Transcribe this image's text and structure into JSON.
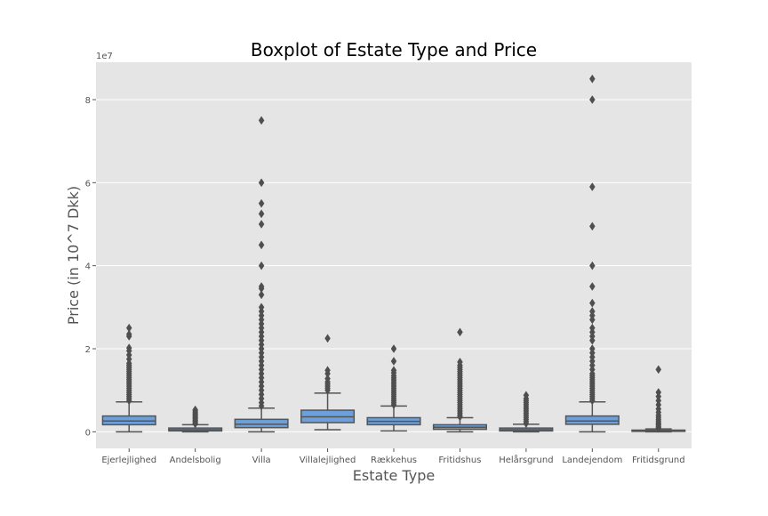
{
  "chart_data": {
    "type": "box",
    "title": "Boxplot of Estate Type and Price",
    "xlabel": "Estate Type",
    "ylabel": "Price (in 10^7 Dkk)",
    "y_offset_text": "1e7",
    "ylim": [
      -0.4,
      8.9
    ],
    "yticks": [
      0,
      2,
      4,
      6,
      8
    ],
    "ytick_labels": [
      "0",
      "2",
      "4",
      "6",
      "8"
    ],
    "grid": true,
    "colors": {
      "plot_background": "#e5e5e5",
      "box_fill": "#6ca0dc",
      "line": "#555555",
      "grid": "#ffffff"
    },
    "categories": [
      "Ejerlejlighed",
      "Andelsbolig",
      "Villa",
      "Villalejlighed",
      "Rækkehus",
      "Fritidshus",
      "Helårsgrund",
      "Landejendom",
      "Fritidsgrund"
    ],
    "boxes": [
      {
        "category": "Ejerlejlighed",
        "whislo": 0.0,
        "q1": 0.17,
        "med": 0.26,
        "q3": 0.38,
        "whishi": 0.72,
        "fliers": [
          0.75,
          0.8,
          0.85,
          0.9,
          0.95,
          1.0,
          1.05,
          1.1,
          1.15,
          1.2,
          1.25,
          1.3,
          1.35,
          1.4,
          1.45,
          1.5,
          1.55,
          1.6,
          1.65,
          1.75,
          1.85,
          1.95,
          2.02,
          2.3,
          2.35,
          2.5
        ]
      },
      {
        "category": "Andelsbolig",
        "whislo": 0.0,
        "q1": 0.02,
        "med": 0.05,
        "q3": 0.09,
        "whishi": 0.17,
        "fliers": [
          0.19,
          0.22,
          0.25,
          0.28,
          0.31,
          0.34,
          0.37,
          0.4,
          0.43,
          0.46,
          0.5,
          0.53
        ]
      },
      {
        "category": "Villa",
        "whislo": 0.0,
        "q1": 0.1,
        "med": 0.18,
        "q3": 0.3,
        "whishi": 0.57,
        "fliers": [
          0.62,
          0.7,
          0.8,
          0.9,
          1.0,
          1.1,
          1.2,
          1.3,
          1.4,
          1.5,
          1.6,
          1.7,
          1.8,
          1.9,
          2.0,
          2.1,
          2.2,
          2.3,
          2.4,
          2.5,
          2.6,
          2.7,
          2.8,
          2.9,
          3.0,
          3.3,
          3.45,
          3.5,
          4.0,
          4.5,
          5.0,
          5.25,
          5.5,
          6.0,
          7.5
        ]
      },
      {
        "category": "Villalejlighed",
        "whislo": 0.05,
        "q1": 0.22,
        "med": 0.36,
        "q3": 0.52,
        "whishi": 0.93,
        "fliers": [
          1.0,
          1.05,
          1.1,
          1.15,
          1.2,
          1.28,
          1.4,
          1.48,
          2.25
        ]
      },
      {
        "category": "Rækkehus",
        "whislo": 0.02,
        "q1": 0.17,
        "med": 0.25,
        "q3": 0.34,
        "whishi": 0.62,
        "fliers": [
          0.65,
          0.7,
          0.75,
          0.8,
          0.85,
          0.9,
          0.95,
          1.0,
          1.05,
          1.1,
          1.15,
          1.2,
          1.25,
          1.3,
          1.35,
          1.42,
          1.48,
          1.7,
          2.0
        ]
      },
      {
        "category": "Fritidshus",
        "whislo": 0.0,
        "q1": 0.06,
        "med": 0.11,
        "q3": 0.17,
        "whishi": 0.34,
        "fliers": [
          0.36,
          0.4,
          0.45,
          0.5,
          0.55,
          0.6,
          0.65,
          0.7,
          0.75,
          0.8,
          0.85,
          0.9,
          0.95,
          1.0,
          1.05,
          1.1,
          1.15,
          1.2,
          1.25,
          1.3,
          1.35,
          1.4,
          1.45,
          1.5,
          1.55,
          1.6,
          1.68,
          2.4
        ]
      },
      {
        "category": "Helårsgrund",
        "whislo": 0.0,
        "q1": 0.02,
        "med": 0.05,
        "q3": 0.09,
        "whishi": 0.18,
        "fliers": [
          0.2,
          0.25,
          0.3,
          0.35,
          0.4,
          0.45,
          0.5,
          0.55,
          0.6,
          0.65,
          0.7,
          0.75,
          0.8,
          0.88
        ]
      },
      {
        "category": "Landejendom",
        "whislo": 0.0,
        "q1": 0.18,
        "med": 0.26,
        "q3": 0.38,
        "whishi": 0.72,
        "fliers": [
          0.75,
          0.8,
          0.85,
          0.9,
          0.95,
          1.0,
          1.05,
          1.1,
          1.15,
          1.2,
          1.25,
          1.3,
          1.35,
          1.4,
          1.5,
          1.6,
          1.7,
          1.8,
          1.9,
          2.0,
          2.2,
          2.3,
          2.4,
          2.5,
          2.7,
          2.8,
          2.9,
          3.1,
          3.5,
          4.0,
          4.95,
          5.9,
          8.0,
          8.5
        ]
      },
      {
        "category": "Fritidsgrund",
        "whislo": 0.0,
        "q1": 0.01,
        "med": 0.02,
        "q3": 0.04,
        "whishi": 0.07,
        "fliers": [
          0.08,
          0.1,
          0.13,
          0.16,
          0.19,
          0.22,
          0.26,
          0.3,
          0.35,
          0.4,
          0.47,
          0.55,
          0.65,
          0.75,
          0.85,
          0.95,
          1.5
        ]
      }
    ]
  }
}
